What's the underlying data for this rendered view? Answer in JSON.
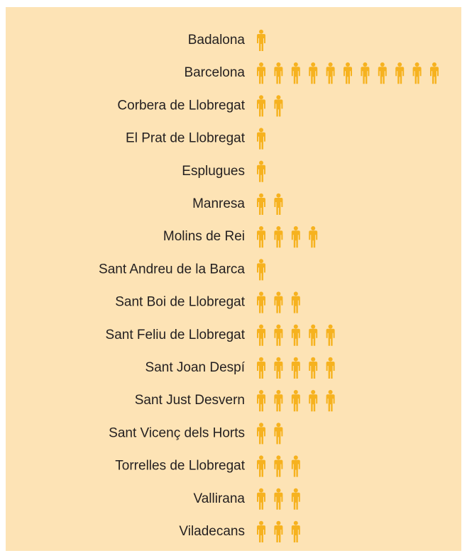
{
  "chart_data": {
    "type": "pictogram",
    "color": "#f6b21f",
    "categories": [
      "Badalona",
      "Barcelona",
      "Corbera de Llobregat",
      "El Prat de Llobregat",
      "Esplugues",
      "Manresa",
      "Molins de Rei",
      "Sant Andreu de la Barca",
      "Sant Boi de Llobregat",
      "Sant Feliu de Llobregat",
      "Sant Joan Despí",
      "Sant Just Desvern",
      "Sant Vicenç dels Horts",
      "Torrelles de Llobregat",
      "Vallirana",
      "Viladecans"
    ],
    "values": [
      1,
      11,
      2,
      1,
      1,
      2,
      4,
      1,
      3,
      5,
      5,
      5,
      2,
      3,
      3,
      3
    ]
  }
}
